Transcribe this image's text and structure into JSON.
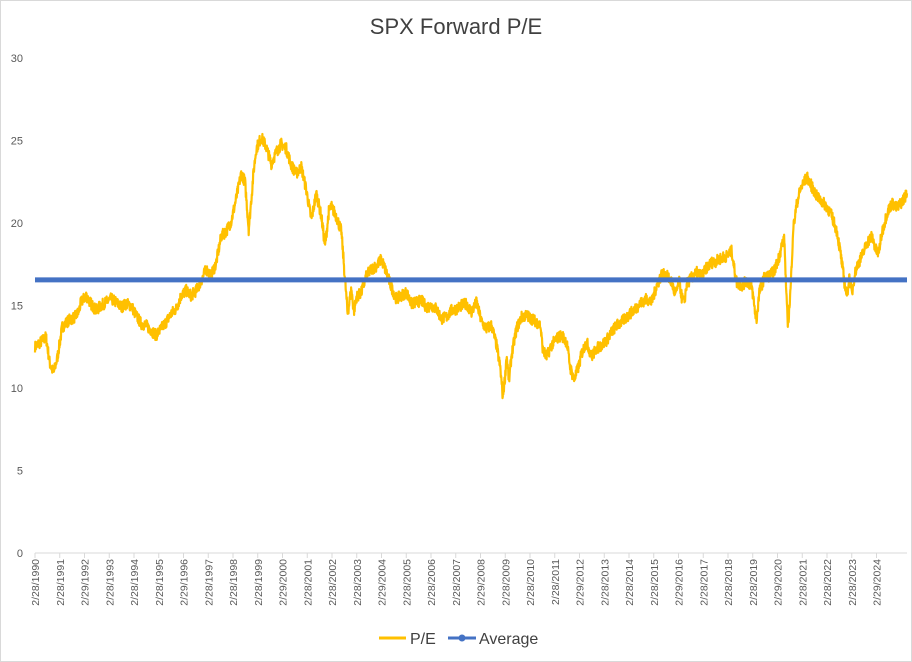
{
  "chart_data": {
    "type": "line",
    "title": "SPX Forward P/E",
    "xlabel": "",
    "ylabel": "",
    "ylim": [
      0,
      30
    ],
    "yticks": [
      0,
      5,
      10,
      15,
      20,
      25,
      30
    ],
    "x_tick_labels": [
      "2/28/1990",
      "2/28/1991",
      "2/29/1992",
      "2/28/1993",
      "2/28/1994",
      "2/28/1995",
      "2/29/1996",
      "2/28/1997",
      "2/28/1998",
      "2/28/1999",
      "2/29/2000",
      "2/28/2001",
      "2/28/2002",
      "2/28/2003",
      "2/29/2004",
      "2/28/2005",
      "2/28/2006",
      "2/28/2007",
      "2/29/2008",
      "2/28/2009",
      "2/28/2010",
      "2/28/2011",
      "2/29/2012",
      "2/28/2013",
      "2/28/2014",
      "2/28/2015",
      "2/29/2016",
      "2/28/2017",
      "2/28/2018",
      "2/28/2019",
      "2/29/2020",
      "2/28/2021",
      "2/28/2022",
      "2/28/2023",
      "2/29/2024"
    ],
    "x_range_years": [
      1990.16,
      2025.0
    ],
    "legend_position": "bottom",
    "series": [
      {
        "name": "P/E",
        "color": "#FFC000",
        "points": [
          [
            1990.16,
            12.5
          ],
          [
            1990.4,
            12.8
          ],
          [
            1990.6,
            13.1
          ],
          [
            1990.75,
            11.5
          ],
          [
            1990.9,
            10.9
          ],
          [
            1991.05,
            11.8
          ],
          [
            1991.25,
            13.7
          ],
          [
            1991.5,
            14.1
          ],
          [
            1991.75,
            14.3
          ],
          [
            1991.9,
            14.6
          ],
          [
            1992.0,
            15.2
          ],
          [
            1992.2,
            15.6
          ],
          [
            1992.4,
            15.1
          ],
          [
            1992.6,
            14.7
          ],
          [
            1992.8,
            15.0
          ],
          [
            1993.0,
            15.2
          ],
          [
            1993.2,
            15.4
          ],
          [
            1993.4,
            15.2
          ],
          [
            1993.6,
            14.9
          ],
          [
            1993.8,
            15.1
          ],
          [
            1994.0,
            15.0
          ],
          [
            1994.2,
            14.4
          ],
          [
            1994.4,
            13.9
          ],
          [
            1994.6,
            13.8
          ],
          [
            1994.8,
            13.5
          ],
          [
            1995.0,
            13.2
          ],
          [
            1995.2,
            13.6
          ],
          [
            1995.4,
            14.0
          ],
          [
            1995.6,
            14.5
          ],
          [
            1995.8,
            14.8
          ],
          [
            1996.0,
            15.6
          ],
          [
            1996.2,
            15.9
          ],
          [
            1996.4,
            15.6
          ],
          [
            1996.6,
            15.9
          ],
          [
            1996.8,
            16.5
          ],
          [
            1997.0,
            17.2
          ],
          [
            1997.2,
            16.8
          ],
          [
            1997.4,
            17.6
          ],
          [
            1997.6,
            19.2
          ],
          [
            1997.8,
            19.5
          ],
          [
            1998.0,
            20.1
          ],
          [
            1998.2,
            21.5
          ],
          [
            1998.4,
            23.0
          ],
          [
            1998.55,
            22.5
          ],
          [
            1998.7,
            19.6
          ],
          [
            1998.9,
            23.2
          ],
          [
            1999.0,
            24.5
          ],
          [
            1999.2,
            25.2
          ],
          [
            1999.4,
            24.6
          ],
          [
            1999.6,
            23.6
          ],
          [
            1999.8,
            24.3
          ],
          [
            2000.0,
            24.8
          ],
          [
            2000.2,
            24.5
          ],
          [
            2000.4,
            23.5
          ],
          [
            2000.6,
            23.0
          ],
          [
            2000.8,
            23.4
          ],
          [
            2001.0,
            22.0
          ],
          [
            2001.2,
            20.2
          ],
          [
            2001.4,
            21.8
          ],
          [
            2001.6,
            20.4
          ],
          [
            2001.75,
            18.6
          ],
          [
            2001.9,
            20.7
          ],
          [
            2002.0,
            21.0
          ],
          [
            2002.2,
            20.4
          ],
          [
            2002.4,
            19.5
          ],
          [
            2002.55,
            16.5
          ],
          [
            2002.65,
            14.5
          ],
          [
            2002.8,
            16.0
          ],
          [
            2002.9,
            14.6
          ],
          [
            2003.0,
            15.5
          ],
          [
            2003.2,
            15.8
          ],
          [
            2003.4,
            16.8
          ],
          [
            2003.6,
            17.2
          ],
          [
            2003.8,
            17.4
          ],
          [
            2004.0,
            17.8
          ],
          [
            2004.2,
            17.0
          ],
          [
            2004.4,
            16.1
          ],
          [
            2004.6,
            15.4
          ],
          [
            2004.8,
            15.6
          ],
          [
            2005.0,
            15.8
          ],
          [
            2005.2,
            15.1
          ],
          [
            2005.4,
            15.2
          ],
          [
            2005.6,
            15.3
          ],
          [
            2005.8,
            14.9
          ],
          [
            2006.0,
            15.0
          ],
          [
            2006.2,
            14.8
          ],
          [
            2006.4,
            14.2
          ],
          [
            2006.6,
            14.3
          ],
          [
            2006.8,
            14.7
          ],
          [
            2007.0,
            14.8
          ],
          [
            2007.2,
            15.0
          ],
          [
            2007.4,
            15.1
          ],
          [
            2007.6,
            14.6
          ],
          [
            2007.8,
            15.2
          ],
          [
            2008.0,
            14.0
          ],
          [
            2008.2,
            13.6
          ],
          [
            2008.4,
            13.8
          ],
          [
            2008.6,
            12.6
          ],
          [
            2008.75,
            11.2
          ],
          [
            2008.85,
            9.5
          ],
          [
            2008.95,
            10.8
          ],
          [
            2009.0,
            12.0
          ],
          [
            2009.1,
            10.4
          ],
          [
            2009.2,
            12.0
          ],
          [
            2009.4,
            13.6
          ],
          [
            2009.6,
            14.3
          ],
          [
            2009.8,
            14.4
          ],
          [
            2010.0,
            14.2
          ],
          [
            2010.2,
            14.0
          ],
          [
            2010.35,
            13.8
          ],
          [
            2010.45,
            12.3
          ],
          [
            2010.6,
            11.9
          ],
          [
            2010.8,
            12.6
          ],
          [
            2011.0,
            13.0
          ],
          [
            2011.2,
            13.2
          ],
          [
            2011.4,
            12.8
          ],
          [
            2011.55,
            11.2
          ],
          [
            2011.7,
            10.5
          ],
          [
            2011.9,
            11.4
          ],
          [
            2012.0,
            12.1
          ],
          [
            2012.2,
            12.8
          ],
          [
            2012.4,
            11.9
          ],
          [
            2012.6,
            12.4
          ],
          [
            2012.8,
            12.6
          ],
          [
            2013.0,
            12.9
          ],
          [
            2013.2,
            13.4
          ],
          [
            2013.4,
            13.8
          ],
          [
            2013.6,
            14.0
          ],
          [
            2013.8,
            14.3
          ],
          [
            2014.0,
            14.6
          ],
          [
            2014.2,
            14.9
          ],
          [
            2014.4,
            15.2
          ],
          [
            2014.6,
            15.4
          ],
          [
            2014.8,
            15.2
          ],
          [
            2015.0,
            16.2
          ],
          [
            2015.2,
            16.9
          ],
          [
            2015.4,
            16.8
          ],
          [
            2015.6,
            16.4
          ],
          [
            2015.75,
            15.6
          ],
          [
            2015.9,
            16.5
          ],
          [
            2016.0,
            15.5
          ],
          [
            2016.1,
            15.2
          ],
          [
            2016.2,
            16.3
          ],
          [
            2016.4,
            16.7
          ],
          [
            2016.6,
            17.0
          ],
          [
            2016.8,
            16.8
          ],
          [
            2017.0,
            17.3
          ],
          [
            2017.2,
            17.6
          ],
          [
            2017.4,
            17.7
          ],
          [
            2017.6,
            17.9
          ],
          [
            2017.8,
            18.0
          ],
          [
            2018.0,
            18.3
          ],
          [
            2018.1,
            17.2
          ],
          [
            2018.2,
            16.4
          ],
          [
            2018.4,
            16.2
          ],
          [
            2018.6,
            16.5
          ],
          [
            2018.8,
            16.1
          ],
          [
            2018.9,
            15.0
          ],
          [
            2018.98,
            14.0
          ],
          [
            2019.1,
            15.8
          ],
          [
            2019.3,
            16.7
          ],
          [
            2019.5,
            16.8
          ],
          [
            2019.7,
            17.1
          ],
          [
            2019.9,
            18.0
          ],
          [
            2020.0,
            18.7
          ],
          [
            2020.1,
            19.0
          ],
          [
            2020.2,
            14.8
          ],
          [
            2020.25,
            13.8
          ],
          [
            2020.35,
            16.0
          ],
          [
            2020.45,
            19.6
          ],
          [
            2020.6,
            21.2
          ],
          [
            2020.75,
            22.1
          ],
          [
            2020.9,
            22.5
          ],
          [
            2021.0,
            22.8
          ],
          [
            2021.2,
            22.2
          ],
          [
            2021.4,
            21.6
          ],
          [
            2021.6,
            21.3
          ],
          [
            2021.8,
            21.0
          ],
          [
            2022.0,
            20.4
          ],
          [
            2022.2,
            19.5
          ],
          [
            2022.35,
            18.1
          ],
          [
            2022.5,
            16.4
          ],
          [
            2022.6,
            15.6
          ],
          [
            2022.7,
            16.8
          ],
          [
            2022.8,
            15.7
          ],
          [
            2022.9,
            16.8
          ],
          [
            2023.0,
            17.4
          ],
          [
            2023.2,
            18.0
          ],
          [
            2023.4,
            18.8
          ],
          [
            2023.6,
            19.2
          ],
          [
            2023.75,
            18.4
          ],
          [
            2023.85,
            18.1
          ],
          [
            2024.0,
            19.4
          ],
          [
            2024.2,
            20.6
          ],
          [
            2024.4,
            21.2
          ],
          [
            2024.6,
            20.9
          ],
          [
            2024.8,
            21.3
          ],
          [
            2025.0,
            21.8
          ]
        ]
      },
      {
        "name": "Average",
        "color": "#4472C4",
        "value": 16.55
      }
    ]
  }
}
